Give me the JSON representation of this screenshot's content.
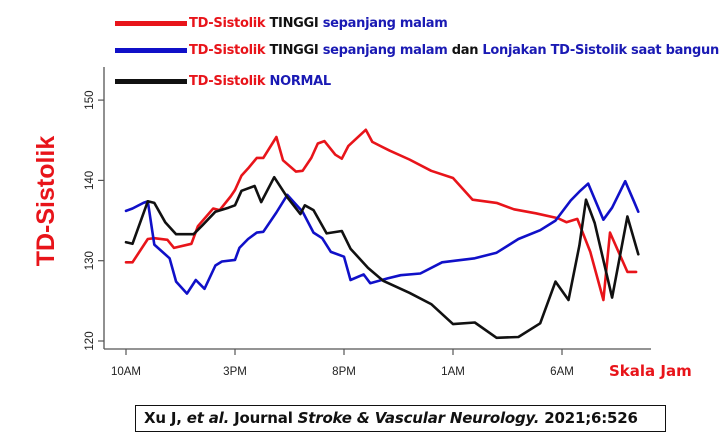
{
  "legend": [
    {
      "color": "#e8141a",
      "parts": [
        {
          "text": "TD-Sistolik",
          "tone": "red"
        },
        {
          "text": " TINGGI ",
          "tone": "black"
        },
        {
          "text": "sepanjang malam",
          "tone": "blue"
        }
      ]
    },
    {
      "color": "#1010c8",
      "parts": [
        {
          "text": "TD-Sistolik",
          "tone": "red"
        },
        {
          "text": " TINGGI ",
          "tone": "black"
        },
        {
          "text": "sepanjang malam",
          "tone": "blue"
        },
        {
          "text": " dan ",
          "tone": "black"
        },
        {
          "text": "Lonjakan TD-Sistolik saat bangun",
          "tone": "blue"
        }
      ]
    },
    {
      "color": "#111111",
      "parts": [
        {
          "text": "TD-Sistolik",
          "tone": "red"
        },
        {
          "text": " NORMAL",
          "tone": "blue"
        }
      ]
    }
  ],
  "y_axis_title": "TD-Sistolik",
  "x_axis_unit_label": "Skala Jam",
  "citation": {
    "author": "Xu J, ",
    "etal": "et al.",
    "journal_prefix": " Journal ",
    "journal": "Stroke & Vascular Neurology.",
    "ref": " 2021;6:526"
  },
  "chart_data": {
    "type": "line",
    "title": "",
    "xlabel": "Skala Jam",
    "ylabel": "TD-Sistolik",
    "x_unit": "hours after 10AM",
    "x_ticks": [
      0,
      5,
      10,
      15,
      20
    ],
    "x_tick_labels": [
      "10AM",
      "3PM",
      "8PM",
      "1AM",
      "6AM"
    ],
    "xlim": [
      -1,
      24.2
    ],
    "y_ticks": [
      120,
      130,
      140,
      150
    ],
    "y_tick_labels": [
      "120",
      "130",
      "140",
      "150"
    ],
    "ylim": [
      118.2,
      154.2
    ],
    "grid": false,
    "legend_position": "top-left, above plot",
    "series": [
      {
        "name": "TD-Sistolik TINGGI sepanjang malam",
        "color": "#e8141a",
        "x": [
          0,
          0.3,
          1.0,
          1.3,
          1.9,
          2.2,
          3.0,
          3.3,
          4.0,
          4.3,
          4.8,
          5.0,
          5.3,
          5.6,
          6.0,
          6.3,
          6.9,
          7.2,
          7.8,
          8.1,
          8.5,
          8.8,
          9.1,
          9.6,
          9.9,
          10.2,
          11.0,
          11.3,
          12.1,
          13.0,
          14.0,
          15.0,
          15.9,
          17.0,
          17.8,
          18.8,
          19.8,
          20.2,
          20.7,
          21.3,
          21.9,
          22.2,
          23.0,
          23.4
        ],
        "y": [
          129.8,
          129.8,
          132.7,
          132.8,
          132.6,
          131.6,
          132.1,
          134.3,
          136.5,
          136.3,
          138.0,
          138.8,
          140.6,
          141.5,
          142.8,
          142.8,
          145.4,
          142.5,
          141.1,
          141.2,
          142.8,
          144.6,
          144.9,
          143.2,
          142.7,
          144.3,
          146.3,
          144.8,
          143.7,
          142.6,
          141.2,
          140.3,
          137.6,
          137.2,
          136.4,
          135.9,
          135.3,
          134.8,
          135.2,
          131.1,
          125.1,
          133.5,
          128.6,
          128.6
        ]
      },
      {
        "name": "TD-Sistolik TINGGI sepanjang malam dan Lonjakan TD-Sistolik saat bangun",
        "color": "#1010c8",
        "x": [
          0,
          0.3,
          0.8,
          1.0,
          1.3,
          2.0,
          2.3,
          2.8,
          3.2,
          3.6,
          4.1,
          4.4,
          5.0,
          5.2,
          5.6,
          6.0,
          6.3,
          6.9,
          7.4,
          7.8,
          8.1,
          8.6,
          9.0,
          9.4,
          10.0,
          10.3,
          10.9,
          11.2,
          12.0,
          12.6,
          13.5,
          14.5,
          15.1,
          16.0,
          17.0,
          18.0,
          19.0,
          19.7,
          20.4,
          20.8,
          21.2,
          21.9,
          22.3,
          22.9,
          23.3,
          23.5
        ],
        "y": [
          136.2,
          136.5,
          137.2,
          137.4,
          132.0,
          130.3,
          127.4,
          125.9,
          127.6,
          126.5,
          129.4,
          129.9,
          130.1,
          131.6,
          132.7,
          133.5,
          133.6,
          136.0,
          138.2,
          137.0,
          136.1,
          133.5,
          132.8,
          131.1,
          130.5,
          127.6,
          128.3,
          127.2,
          127.8,
          128.2,
          128.4,
          129.8,
          130.0,
          130.3,
          131.0,
          132.7,
          133.8,
          135.0,
          137.5,
          138.6,
          139.6,
          135.1,
          136.6,
          139.9,
          137.4,
          136.1
        ]
      },
      {
        "name": "TD-Sistolik NORMAL",
        "color": "#111111",
        "x": [
          0,
          0.3,
          1.0,
          1.3,
          1.8,
          2.3,
          3.1,
          3.5,
          4.1,
          4.7,
          5.0,
          5.3,
          5.9,
          6.2,
          6.8,
          7.4,
          8.0,
          8.2,
          8.6,
          9.2,
          9.9,
          10.3,
          11.1,
          11.8,
          13.0,
          14.0,
          15.0,
          16.0,
          17.0,
          18.0,
          19.0,
          19.7,
          20.3,
          20.8,
          21.1,
          21.5,
          22.3,
          23.0,
          23.5
        ],
        "y": [
          132.3,
          132.1,
          137.4,
          137.2,
          134.8,
          133.3,
          133.3,
          134.4,
          136.1,
          136.6,
          136.9,
          138.7,
          139.3,
          137.3,
          140.4,
          137.9,
          135.8,
          136.9,
          136.3,
          133.4,
          133.7,
          131.5,
          129.1,
          127.5,
          126.0,
          124.6,
          122.1,
          122.3,
          120.4,
          120.5,
          122.2,
          127.4,
          125.1,
          131.9,
          137.6,
          134.7,
          125.4,
          135.5,
          130.8
        ]
      }
    ]
  }
}
